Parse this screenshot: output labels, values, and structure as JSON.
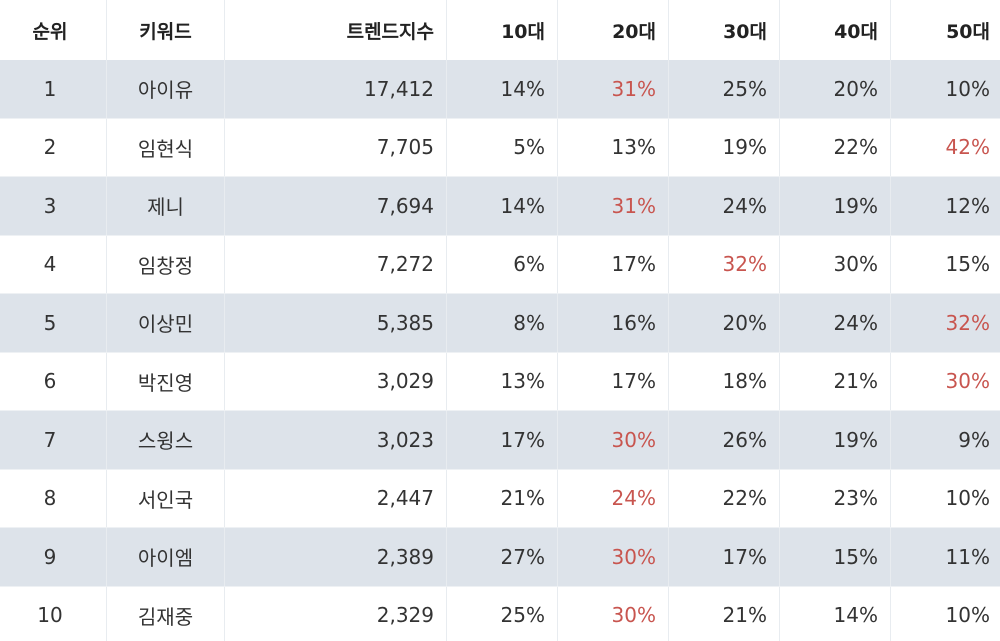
{
  "colors": {
    "shaded_row": "#dde3ea",
    "highlight": "#c8554f",
    "text": "#333333"
  },
  "headers": {
    "rank": "순위",
    "keyword": "키워드",
    "trend_index": "트렌드지수",
    "age10": "10대",
    "age20": "20대",
    "age30": "30대",
    "age40": "40대",
    "age50": "50대"
  },
  "rows": [
    {
      "rank": "1",
      "keyword": "아이유",
      "index": "17,412",
      "ages": [
        "14%",
        "31%",
        "25%",
        "20%",
        "10%"
      ],
      "highlight": 1
    },
    {
      "rank": "2",
      "keyword": "임현식",
      "index": "7,705",
      "ages": [
        "5%",
        "13%",
        "19%",
        "22%",
        "42%"
      ],
      "highlight": 4
    },
    {
      "rank": "3",
      "keyword": "제니",
      "index": "7,694",
      "ages": [
        "14%",
        "31%",
        "24%",
        "19%",
        "12%"
      ],
      "highlight": 1
    },
    {
      "rank": "4",
      "keyword": "임창정",
      "index": "7,272",
      "ages": [
        "6%",
        "17%",
        "32%",
        "30%",
        "15%"
      ],
      "highlight": 2
    },
    {
      "rank": "5",
      "keyword": "이상민",
      "index": "5,385",
      "ages": [
        "8%",
        "16%",
        "20%",
        "24%",
        "32%"
      ],
      "highlight": 4
    },
    {
      "rank": "6",
      "keyword": "박진영",
      "index": "3,029",
      "ages": [
        "13%",
        "17%",
        "18%",
        "21%",
        "30%"
      ],
      "highlight": 4
    },
    {
      "rank": "7",
      "keyword": "스윙스",
      "index": "3,023",
      "ages": [
        "17%",
        "30%",
        "26%",
        "19%",
        "9%"
      ],
      "highlight": 1
    },
    {
      "rank": "8",
      "keyword": "서인국",
      "index": "2,447",
      "ages": [
        "21%",
        "24%",
        "22%",
        "23%",
        "10%"
      ],
      "highlight": 1
    },
    {
      "rank": "9",
      "keyword": "아이엠",
      "index": "2,389",
      "ages": [
        "27%",
        "30%",
        "17%",
        "15%",
        "11%"
      ],
      "highlight": 1
    },
    {
      "rank": "10",
      "keyword": "김재중",
      "index": "2,329",
      "ages": [
        "25%",
        "30%",
        "21%",
        "14%",
        "10%"
      ],
      "highlight": 1
    }
  ]
}
